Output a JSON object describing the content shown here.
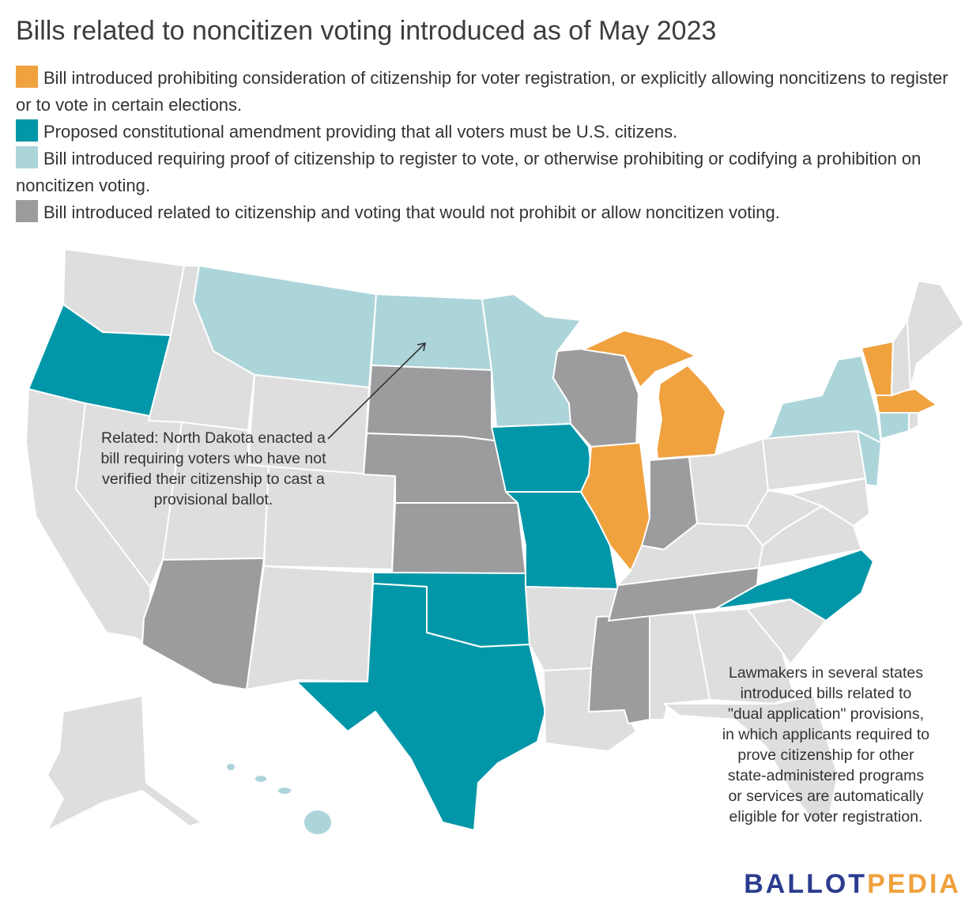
{
  "title": "Bills related to noncitizen voting introduced as of May 2023",
  "legend": [
    {
      "color": "#f0a23f",
      "label": "Bill introduced prohibiting consideration of citizenship for voter registration, or explicitly allowing noncitizens to register or to vote in certain elections."
    },
    {
      "color": "#0297a8",
      "label": "Proposed constitutional amendment providing that all voters must be U.S. citizens."
    },
    {
      "color": "#acd5da",
      "label": "Bill introduced requiring proof of citizenship to register to vote, or otherwise prohibiting or codifying a prohibition on noncitizen voting."
    },
    {
      "color": "#9c9c9e",
      "label": "Bill introduced related to citizenship and voting that would not prohibit or allow noncitizen voting."
    }
  ],
  "colors": {
    "allow": "#f0a23f",
    "amendment": "#0297a8",
    "proof": "#acd5da",
    "related": "#9c9c9e",
    "none": "#dedede",
    "border": "#ffffff"
  },
  "states": {
    "allow": [
      "Illinois",
      "Michigan",
      "Vermont",
      "Massachusetts"
    ],
    "amendment": [
      "Oregon",
      "Iowa",
      "Missouri",
      "Oklahoma",
      "Texas",
      "North Carolina"
    ],
    "proof": [
      "Montana",
      "North Dakota",
      "Minnesota",
      "New York",
      "New Jersey",
      "Connecticut",
      "Hawaii"
    ],
    "related": [
      "Arizona",
      "South Dakota",
      "Nebraska",
      "Kansas",
      "Wisconsin",
      "Indiana",
      "Tennessee",
      "Mississippi"
    ]
  },
  "annotations": {
    "north_dakota": "Related: North Dakota enacted a\nbill requiring voters who have not\nverified their citizenship to cast a\nprovisional ballot.",
    "dual_application": "Lawmakers in several states\nintroduced bills related to\n\"dual application\" provisions,\nin which applicants required to\nprove citizenship for other\nstate-administered programs\nor services are automatically\neligible for voter registration."
  },
  "logo": {
    "part1": "BALLOT",
    "part2": "PEDIA"
  }
}
